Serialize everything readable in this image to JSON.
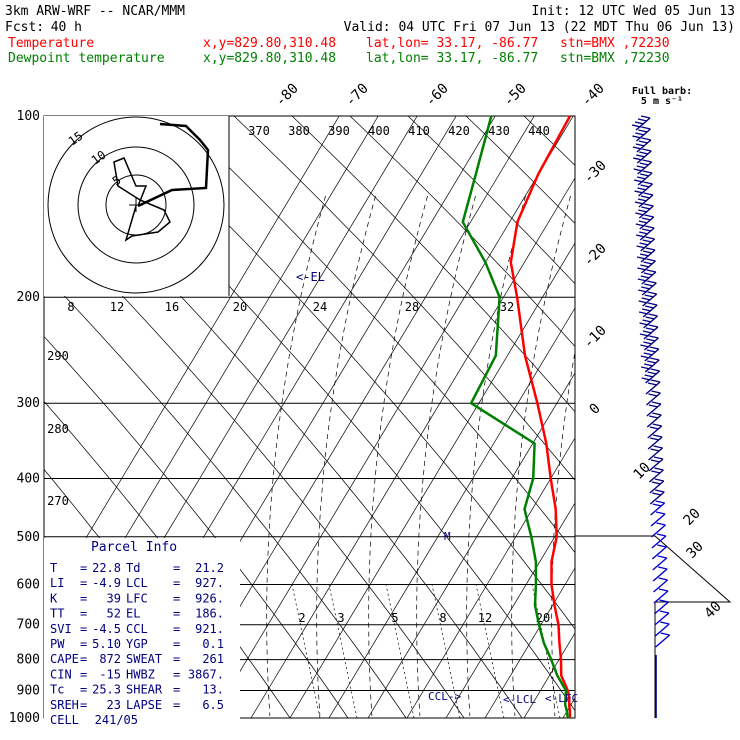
{
  "header": {
    "model": "3km ARW-WRF -- NCAR/MMM",
    "init": "Init: 12 UTC Wed 05 Jun 13",
    "fcst_label": "Fcst:",
    "fcst_hours": "40 h",
    "valid": "Valid: 04 UTC Fri 07 Jun 13 (22 MDT Thu 06 Jun 13)",
    "temp_line": {
      "name": "Temperature",
      "xy": "x,y=829.80,310.48",
      "latlon": "lat,lon= 33.17, -86.77",
      "stn": "stn=BMX ,72230"
    },
    "dew_line": {
      "name": "Dewpoint temperature",
      "xy": "x,y=829.80,310.48",
      "latlon": "lat,lon= 33.17, -86.77",
      "stn": "stn=BMX ,72230"
    }
  },
  "colors": {
    "temperature": "#ff0000",
    "dewpoint": "#008000",
    "text_red": "#ff0000",
    "text_green": "#008000",
    "parcel_text": "#000080"
  },
  "chart_data": {
    "type": "line",
    "title": "",
    "pressure_levels": [
      {
        "label": "100",
        "p": 100
      },
      {
        "label": "200",
        "p": 200
      },
      {
        "label": "300",
        "p": 300
      },
      {
        "label": "400",
        "p": 400
      },
      {
        "label": "500",
        "p": 500
      },
      {
        "label": "600",
        "p": 600
      },
      {
        "label": "700",
        "p": 700
      },
      {
        "label": "800",
        "p": 800
      },
      {
        "label": "900",
        "p": 900
      },
      {
        "label": "1000",
        "p": 1000
      }
    ],
    "isotherm_labels": [
      "-80",
      "-70",
      "-60",
      "-50",
      "-40",
      "-30",
      "-20",
      "-10",
      "0",
      "10",
      "20",
      "30",
      "40"
    ],
    "theta_labels": [
      "370",
      "380",
      "390",
      "400",
      "410",
      "420",
      "430",
      "440"
    ],
    "theta_side_labels": [
      "290",
      "280",
      "270"
    ],
    "mixing_ratio_labels": [
      "2",
      "3",
      "5",
      "8",
      "12",
      "20"
    ],
    "hodograph": {
      "units": "kts",
      "ring_labels": [
        "5",
        "10",
        "15"
      ],
      "axis_labels": [
        "8",
        "12",
        "16",
        "20",
        "24",
        "28",
        "32"
      ]
    },
    "barb_title": "Full barb:",
    "barb_units": "5 m s⁻¹",
    "el_marker": "<-EL",
    "m_marker": "M",
    "ccl_marker": "CCL->",
    "lcl_marker": "<-LCL",
    "lfc_marker": "<-LFC",
    "series": [
      {
        "name": "Temperature",
        "points": [
          [
            1000,
            22.8
          ],
          [
            975,
            21.0
          ],
          [
            950,
            19.5
          ],
          [
            925,
            18.5
          ],
          [
            900,
            17.0
          ],
          [
            850,
            13.0
          ],
          [
            800,
            10.5
          ],
          [
            750,
            7.5
          ],
          [
            700,
            4.5
          ],
          [
            650,
            0.5
          ],
          [
            600,
            -3.5
          ],
          [
            550,
            -7.0
          ],
          [
            500,
            -9.5
          ],
          [
            450,
            -14.0
          ],
          [
            400,
            -20.0
          ],
          [
            350,
            -26.5
          ],
          [
            300,
            -35.0
          ],
          [
            250,
            -45.5
          ],
          [
            200,
            -56.5
          ],
          [
            175,
            -63.5
          ],
          [
            150,
            -68.0
          ],
          [
            125,
            -70.0
          ],
          [
            100,
            -70.5
          ]
        ]
      },
      {
        "name": "Dewpoint temperature",
        "points": [
          [
            1000,
            21.2
          ],
          [
            975,
            20.0
          ],
          [
            950,
            18.5
          ],
          [
            925,
            17.5
          ],
          [
            900,
            16.5
          ],
          [
            850,
            12.0
          ],
          [
            800,
            8.0
          ],
          [
            750,
            3.5
          ],
          [
            700,
            -0.5
          ],
          [
            650,
            -4.5
          ],
          [
            600,
            -7.5
          ],
          [
            550,
            -11.0
          ],
          [
            500,
            -16.0
          ],
          [
            450,
            -22.0
          ],
          [
            400,
            -24.5
          ],
          [
            350,
            -29.5
          ],
          [
            300,
            -52.0
          ],
          [
            250,
            -53.0
          ],
          [
            200,
            -61.0
          ],
          [
            175,
            -70.0
          ],
          [
            150,
            -82.0
          ],
          [
            125,
            -86.0
          ],
          [
            100,
            -91.0
          ]
        ]
      }
    ]
  },
  "parcel_info": {
    "title": "Parcel Info",
    "rows": [
      {
        "l1": "T",
        "v1": "22.8",
        "l2": "Td",
        "v2": "21.2"
      },
      {
        "l1": "LI",
        "v1": "-4.9",
        "l2": "LCL",
        "v2": "927."
      },
      {
        "l1": "K",
        "v1": "39",
        "l2": "LFC",
        "v2": "926."
      },
      {
        "l1": "TT",
        "v1": "52",
        "l2": "EL",
        "v2": "186."
      },
      {
        "l1": "SVI",
        "v1": "-4.5",
        "l2": "CCL",
        "v2": "921."
      },
      {
        "l1": "PW",
        "v1": "5.10",
        "l2": "YGP",
        "v2": "0.1"
      },
      {
        "l1": "CAPE",
        "v1": "872",
        "l2": "SWEAT",
        "v2": "261"
      },
      {
        "l1": "CIN",
        "v1": "-15",
        "l2": "HWBZ",
        "v2": "3867."
      },
      {
        "l1": "Tc",
        "v1": "25.3",
        "l2": "SHEAR",
        "v2": "13."
      },
      {
        "l1": "SREH",
        "v1": "23",
        "l2": "LAPSE",
        "v2": "6.5"
      },
      {
        "l1": "CELL",
        "v1": "241/05",
        "l2": "",
        "v2": ""
      }
    ]
  }
}
